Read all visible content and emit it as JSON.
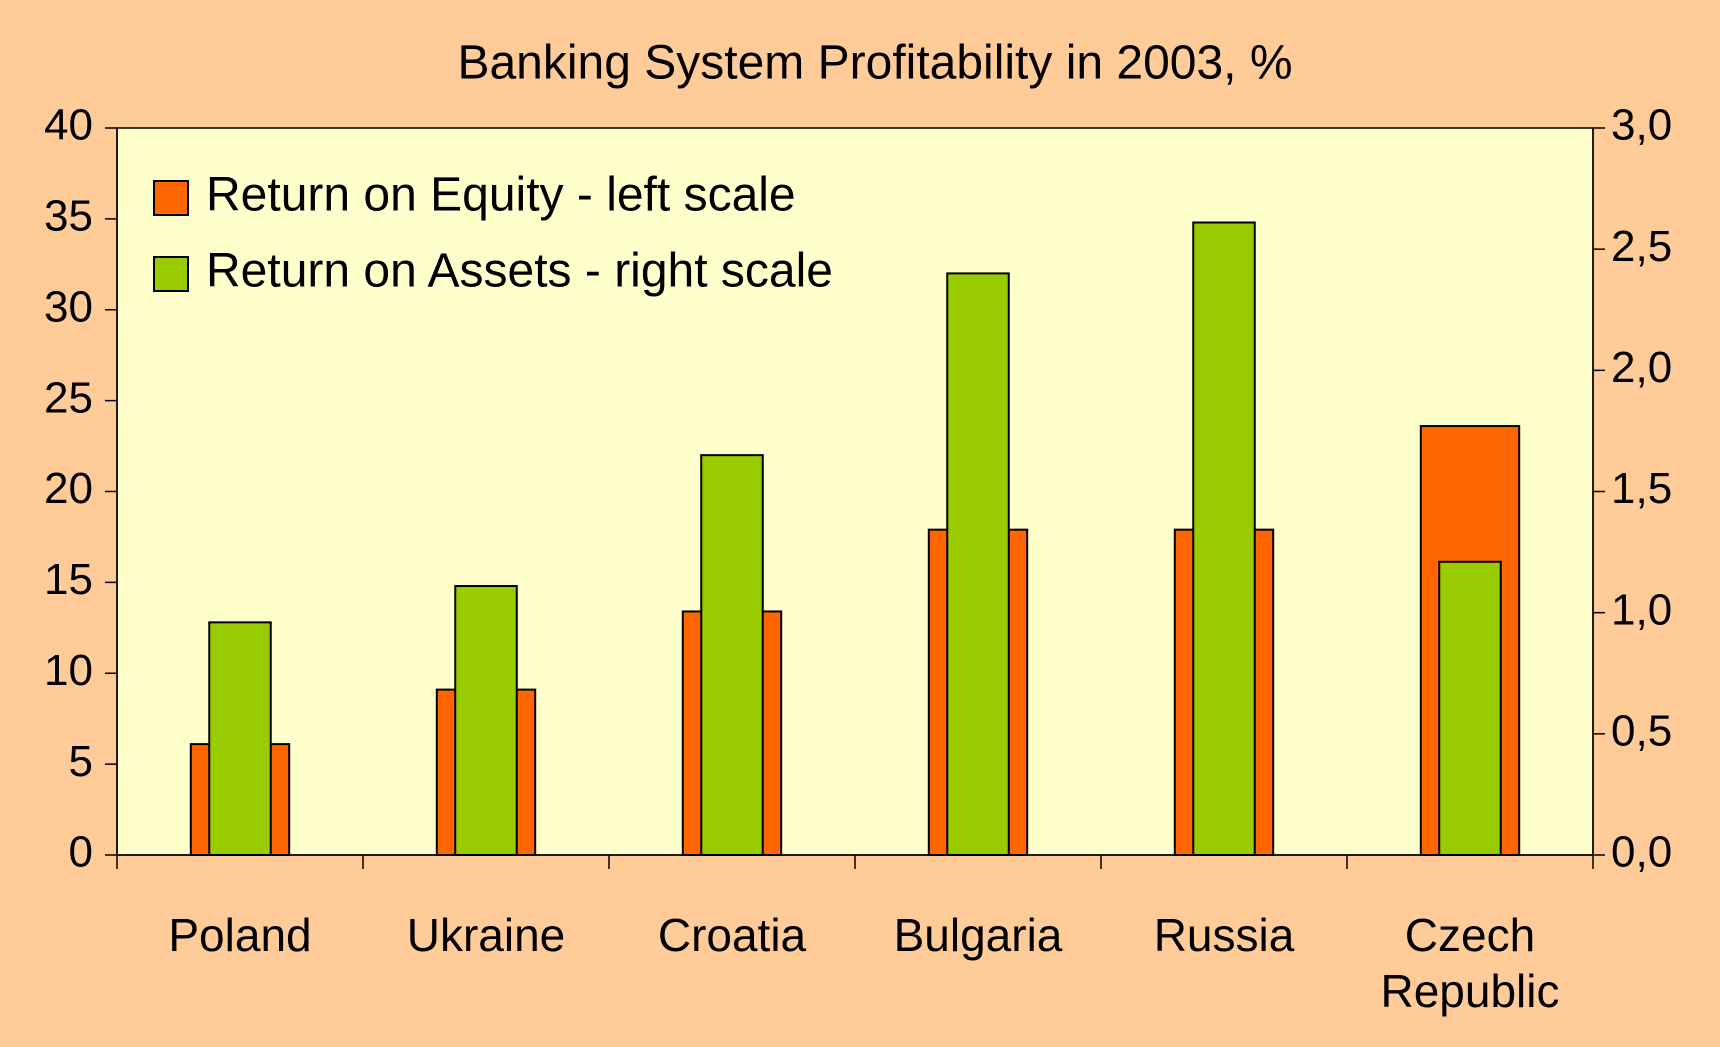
{
  "chart_data": {
    "type": "bar",
    "title": "Banking System Profitability in 2003, %",
    "categories": [
      "Poland",
      "Ukraine",
      "Croatia",
      "Bulgaria",
      "Russia",
      "Czech Republic"
    ],
    "series": [
      {
        "name": "Return on Equity - left scale",
        "color": "#ff6600",
        "values": [
          6.1,
          9.1,
          13.4,
          17.9,
          17.9,
          23.6
        ]
      },
      {
        "name": "Return on Assets - right scale",
        "color": "#99cc00",
        "axis": "y2",
        "values": [
          0.96,
          1.11,
          1.65,
          2.4,
          2.61,
          1.21
        ]
      }
    ],
    "ylim": [
      0,
      40
    ],
    "yticks": [
      0,
      5,
      10,
      15,
      20,
      25,
      30,
      35,
      40
    ],
    "y2lim": [
      0,
      3
    ],
    "y2ticks": [
      {
        "value": 0,
        "label": "0,0"
      },
      {
        "value": 0.5,
        "label": "0,5"
      },
      {
        "value": 1,
        "label": "1,0"
      },
      {
        "value": 1.5,
        "label": "1,5"
      },
      {
        "value": 2,
        "label": "2,0"
      },
      {
        "value": 2.5,
        "label": "2,5"
      },
      {
        "value": 3,
        "label": "3,0"
      }
    ],
    "legend": "upper left"
  }
}
